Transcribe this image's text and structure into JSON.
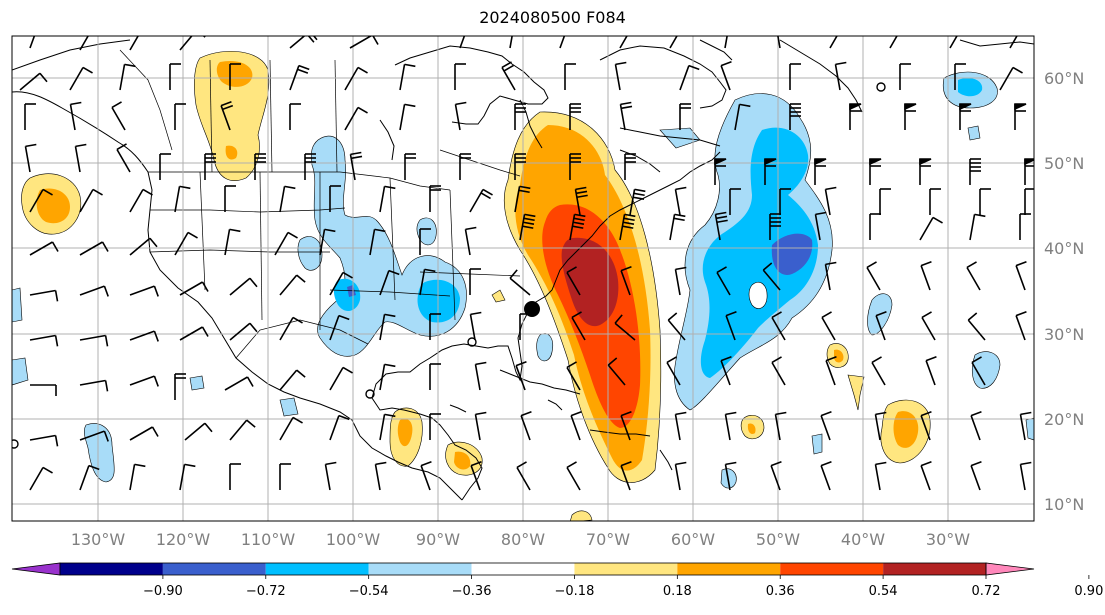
{
  "map": {
    "title": "2024080500 F084",
    "lat_labels": [
      "60°N",
      "50°N",
      "40°N",
      "30°N",
      "20°N",
      "10°N"
    ],
    "lon_labels": [
      "130°W",
      "120°W",
      "110°W",
      "100°W",
      "90°W",
      "80°W",
      "70°W",
      "60°W",
      "50°W",
      "40°W",
      "30°W"
    ],
    "colorbar": {
      "tick_labels": [
        "−0.90",
        "−0.72",
        "−0.54",
        "−0.36",
        "−0.18",
        "0.18",
        "0.36",
        "0.54",
        "0.72",
        "0.90"
      ],
      "colors": [
        "#9932cc",
        "#00008b",
        "#3a5fcd",
        "#00bfff",
        "#a8dcf8",
        "#ffffff",
        "#ffe680",
        "#ffa500",
        "#ff4500",
        "#b22222",
        "#ff88bb"
      ]
    },
    "fill_colors": {
      "pale_yellow": "#ffe680",
      "orange": "#ffa500",
      "red_orange": "#ff4500",
      "dark_red": "#b22222",
      "light_blue": "#a8dcf8",
      "sky_blue": "#00bfff",
      "royal_blue": "#3a5fcd"
    }
  }
}
